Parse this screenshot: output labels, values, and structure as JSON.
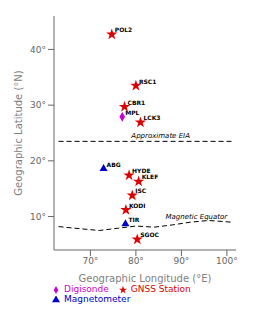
{
  "chart_data": {
    "type": "scatter",
    "xlabel": "Geographic Longitude (°E)",
    "ylabel": "Geographic Latitude (°N)",
    "xlim": [
      62,
      102
    ],
    "ylim": [
      4,
      46
    ],
    "xticks": [
      {
        "value": 70,
        "label": "70°"
      },
      {
        "value": 80,
        "label": "80°"
      },
      {
        "value": 90,
        "label": "90°"
      },
      {
        "value": 100,
        "label": "100°"
      }
    ],
    "yticks": [
      {
        "value": 10,
        "label": "10°"
      },
      {
        "value": 20,
        "label": "20°"
      },
      {
        "value": 30,
        "label": "30°"
      },
      {
        "value": 40,
        "label": "40°"
      }
    ],
    "grid": false,
    "legend": "lower left",
    "series": [
      {
        "name": "GNSS Station",
        "color": "#dd0000",
        "marker": "star",
        "x": [
          74.7,
          80.0,
          77.5,
          81.0,
          78.5,
          80.6,
          79.2,
          77.8,
          80.3
        ],
        "values": [
          42.7,
          33.5,
          29.7,
          26.9,
          17.4,
          16.3,
          13.8,
          11.2,
          5.9
        ],
        "point_labels": [
          "POL2",
          "RSC1",
          "CBR1",
          "LCK3",
          "HYDE",
          "KLEF",
          "ISC",
          "KODI",
          "SGOC"
        ]
      },
      {
        "name": "Magnetometer",
        "color": "#0000cc",
        "marker": "triangle",
        "x": [
          72.9,
          77.7
        ],
        "values": [
          18.6,
          8.7
        ],
        "point_labels": [
          "ABG",
          "TIR"
        ]
      },
      {
        "name": "Digisonde",
        "color": "#cc00cc",
        "marker": "diamond",
        "x": [
          77.0
        ],
        "values": [
          27.9
        ],
        "point_labels": [
          "MPL"
        ]
      }
    ],
    "lines": [
      {
        "color": "#000000",
        "line_style": "dashed",
        "x": [
          63,
          101
        ],
        "values": [
          23.5,
          23.5
        ]
      },
      {
        "color": "#000000",
        "line_style": "dashed",
        "x": [
          63,
          68,
          72,
          76,
          80,
          84,
          88,
          92,
          96,
          101
        ],
        "values": [
          8.2,
          7.8,
          7.5,
          7.9,
          8.3,
          8.1,
          8.5,
          9.0,
          9.3,
          9.0
        ]
      }
    ],
    "annotations": [
      {
        "text": "Approximate EIA",
        "x": 79.0,
        "y": 24.1
      },
      {
        "text": "Magnetic Equator",
        "x": 86.5,
        "y": 9.5
      }
    ]
  }
}
